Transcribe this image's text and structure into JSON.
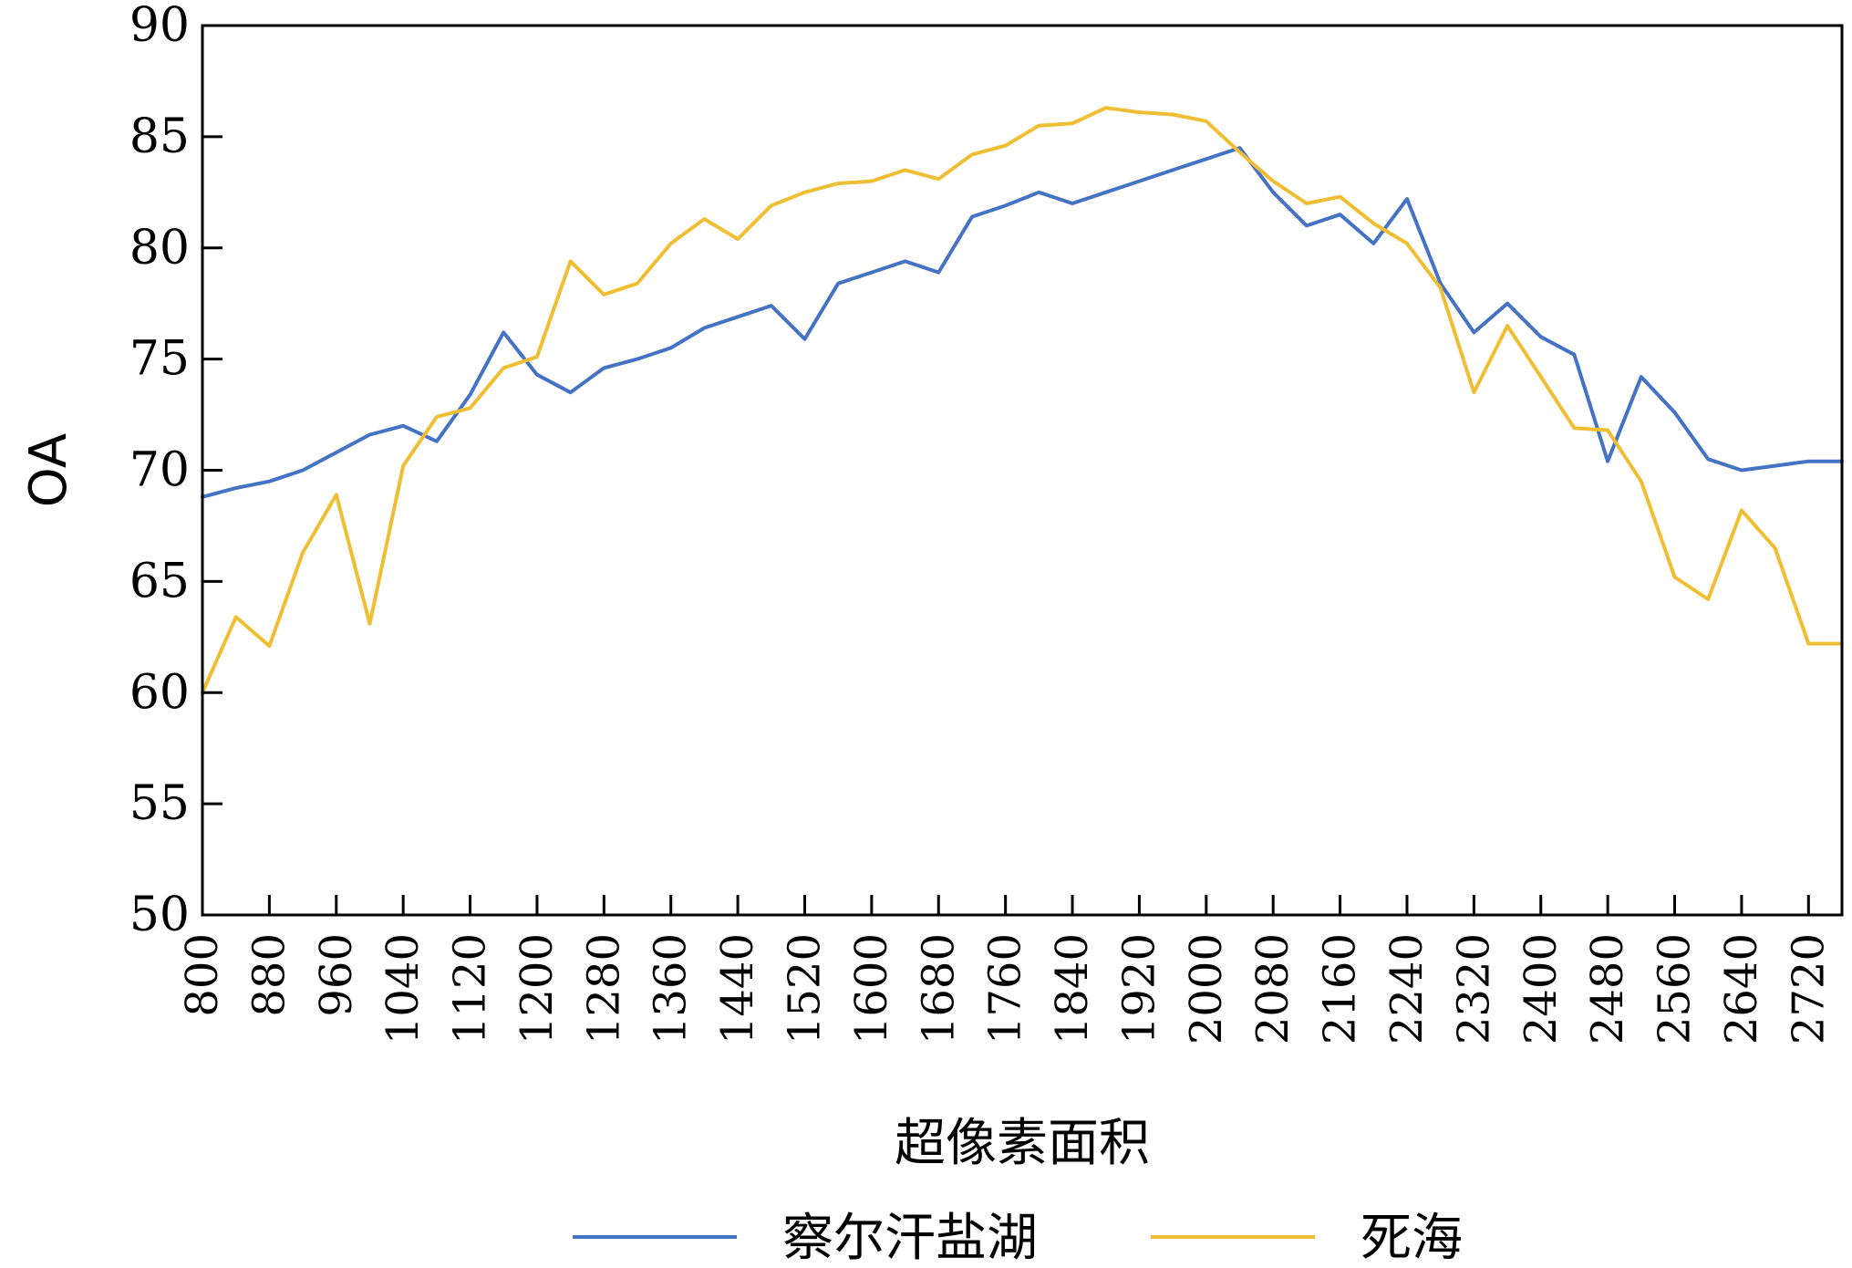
{
  "chart_data": {
    "type": "line",
    "xlabel": "超像素面积",
    "ylabel": "OA",
    "ylim": [
      50,
      90
    ],
    "yticks": [
      50,
      55,
      60,
      65,
      70,
      75,
      80,
      85,
      90
    ],
    "xlim": [
      800,
      2760
    ],
    "xticks": [
      800,
      880,
      960,
      1040,
      1120,
      1200,
      1280,
      1360,
      1440,
      1520,
      1600,
      1680,
      1760,
      1840,
      1920,
      2000,
      2080,
      2160,
      2240,
      2320,
      2400,
      2480,
      2560,
      2640,
      2720
    ],
    "x": [
      800,
      840,
      880,
      920,
      960,
      1000,
      1040,
      1080,
      1120,
      1160,
      1200,
      1240,
      1280,
      1320,
      1360,
      1400,
      1440,
      1480,
      1520,
      1560,
      1600,
      1640,
      1680,
      1720,
      1760,
      1800,
      1840,
      1880,
      1920,
      1960,
      2000,
      2040,
      2080,
      2120,
      2160,
      2200,
      2240,
      2280,
      2320,
      2360,
      2400,
      2440,
      2480,
      2520,
      2560,
      2600,
      2640,
      2680,
      2720,
      2760
    ],
    "legend_position": "bottom",
    "grid": false,
    "series": [
      {
        "name": "察尔汗盐湖",
        "color": "#4472c4",
        "values": [
          68.8,
          69.2,
          69.5,
          70.0,
          70.8,
          71.6,
          72.0,
          71.3,
          73.4,
          76.2,
          74.3,
          73.5,
          74.6,
          75.0,
          75.5,
          76.4,
          76.9,
          77.4,
          75.9,
          78.4,
          78.9,
          79.4,
          78.9,
          81.4,
          81.9,
          82.5,
          82.0,
          82.5,
          83.0,
          83.5,
          84.0,
          84.5,
          82.5,
          81.0,
          81.5,
          80.2,
          82.2,
          78.4,
          76.2,
          77.5,
          76.0,
          75.2,
          70.4,
          74.2,
          72.6,
          70.5,
          70.0,
          70.2,
          70.4,
          70.4
        ],
        "dash": ""
      },
      {
        "name": "死海",
        "color": "#f0be32",
        "values": [
          60.0,
          63.4,
          62.1,
          66.3,
          68.9,
          63.1,
          70.2,
          72.4,
          72.8,
          74.6,
          75.1,
          79.4,
          77.9,
          78.4,
          80.2,
          81.3,
          80.4,
          81.9,
          82.5,
          82.9,
          83.0,
          83.5,
          83.1,
          84.2,
          84.6,
          85.5,
          85.6,
          86.3,
          86.1,
          86.0,
          85.7,
          84.3,
          83.0,
          82.0,
          82.3,
          81.1,
          80.2,
          78.2,
          73.5,
          76.5,
          74.2,
          71.9,
          71.8,
          69.5,
          65.2,
          64.2,
          68.2,
          66.5,
          62.2,
          62.2
        ],
        "dash": ""
      }
    ]
  }
}
